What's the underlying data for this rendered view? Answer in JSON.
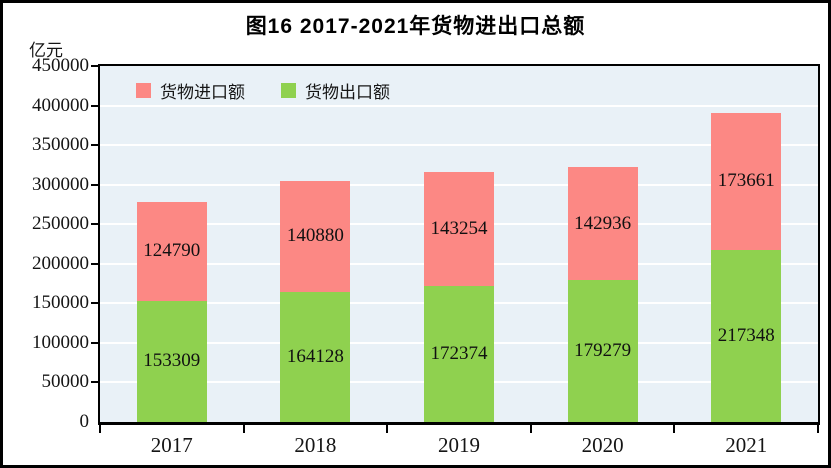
{
  "figure": {
    "title": "图16  2017-2021年货物进出口总额",
    "unit_label": "亿元"
  },
  "legend": [
    {
      "label": "货物进口额",
      "color": "#fc8884"
    },
    {
      "label": "货物出口额",
      "color": "#8fd14f"
    }
  ],
  "chart_data": {
    "type": "bar",
    "stacked": true,
    "title": "图16  2017-2021年货物进出口总额",
    "ylabel": "亿元",
    "xlabel": "",
    "categories": [
      "2017",
      "2018",
      "2019",
      "2020",
      "2021"
    ],
    "series": [
      {
        "name": "货物出口额",
        "color": "#8fd14f",
        "values": [
          153309,
          164128,
          172374,
          179279,
          217348
        ]
      },
      {
        "name": "货物进口额",
        "color": "#fc8884",
        "values": [
          124790,
          140880,
          143254,
          142936,
          173661
        ]
      }
    ],
    "totals": [
      278099,
      305008,
      315628,
      322215,
      391009
    ],
    "ylim": [
      0,
      450000
    ],
    "ytick_step": 50000,
    "yticks": [
      0,
      50000,
      100000,
      150000,
      200000,
      250000,
      300000,
      350000,
      400000,
      450000
    ],
    "grid": true,
    "gridline_color": "#ffffff",
    "plot_bg": "#e9f1f7",
    "legend_position": "top-left-inside"
  }
}
